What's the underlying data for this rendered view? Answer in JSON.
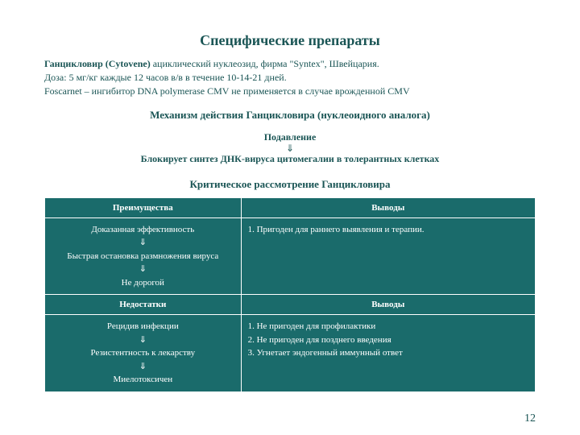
{
  "title": "Специфические препараты",
  "intro_lines": {
    "l1_lead": "Ганцикловир (Cytovene)",
    "l1_rest": " ациклический нуклеозид, фирма \"Syntex\", Швейцария.",
    "l2": "Доза: 5 мг/кг каждые 12 часов в/в в течение 10-14-21 дней.",
    "l3": "Foscarnet – ингибитор DNA polymerase CMV не применяется в случае врожденной CMV"
  },
  "mech_title": "Механизм действия Ганцикловира (нуклеоидного аналога)",
  "suppress": "Подавление",
  "arrow": "⇓",
  "blocks": "Блокирует синтез ДНК-вируса цитомегалии в толерантных клетках",
  "crit_title": "Критическое рассмотрение Ганцикловира",
  "table": {
    "headers": {
      "advantages": "Преимущества",
      "conclusions": "Выводы",
      "disadvantages": "Недостатки"
    },
    "row1_left_lines": [
      "Доказанная эффективность",
      "⇓",
      "Быстрая остановка размножения вируса",
      "⇓",
      "Не дорогой"
    ],
    "row1_right": "1.  Пригоден для раннего выявления и терапии.",
    "row2_left_lines": [
      "Рецидив инфекции",
      "⇓",
      "Резистентность к лекарству",
      "⇓",
      "Миелотоксичен"
    ],
    "row2_right_lines": [
      "1.  Не пригоден для профилактики",
      "2.  Не пригоден для позднего введения",
      "3.  Угнетает эндогенный иммунный ответ"
    ]
  },
  "page_number": "12",
  "colors": {
    "text": "#1a5555",
    "table_bg": "#1a6b6b",
    "table_text": "#ffffff",
    "table_border": "#ffffff",
    "page_bg": "#ffffff"
  }
}
